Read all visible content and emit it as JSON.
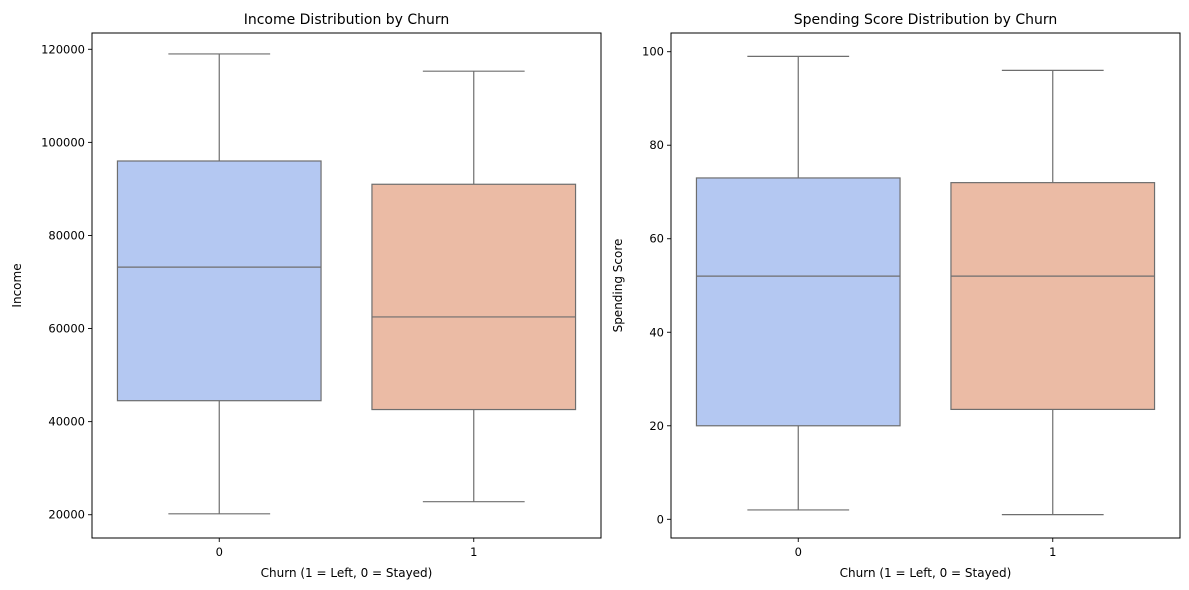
{
  "chart_data": [
    {
      "type": "box",
      "title": "Income Distribution by Churn",
      "xlabel": "Churn (1 = Left, 0 = Stayed)",
      "ylabel": "Income",
      "categories": [
        "0",
        "1"
      ],
      "ylim": [
        15000,
        123500
      ],
      "yticks": [
        20000,
        40000,
        60000,
        80000,
        100000,
        120000
      ],
      "box_colors": [
        "#b4c8f2",
        "#ebbba5"
      ],
      "boxes": [
        {
          "category": "0",
          "whisker_low": 20200,
          "q1": 44500,
          "median": 73200,
          "q3": 96000,
          "whisker_high": 119000
        },
        {
          "category": "1",
          "whisker_low": 22800,
          "q1": 42600,
          "median": 62500,
          "q3": 91000,
          "whisker_high": 115300
        }
      ]
    },
    {
      "type": "box",
      "title": "Spending Score Distribution by Churn",
      "xlabel": "Churn (1 = Left, 0 = Stayed)",
      "ylabel": "Spending Score",
      "categories": [
        "0",
        "1"
      ],
      "ylim": [
        -4,
        104
      ],
      "yticks": [
        0,
        20,
        40,
        60,
        80,
        100
      ],
      "box_colors": [
        "#b4c8f2",
        "#ebbba5"
      ],
      "boxes": [
        {
          "category": "0",
          "whisker_low": 2,
          "q1": 20,
          "median": 52,
          "q3": 73,
          "whisker_high": 99
        },
        {
          "category": "1",
          "whisker_low": 1,
          "q1": 23.5,
          "median": 52,
          "q3": 72,
          "whisker_high": 96
        }
      ]
    }
  ],
  "colors": {
    "line": "#6e6e6e",
    "frame": "#000000"
  }
}
